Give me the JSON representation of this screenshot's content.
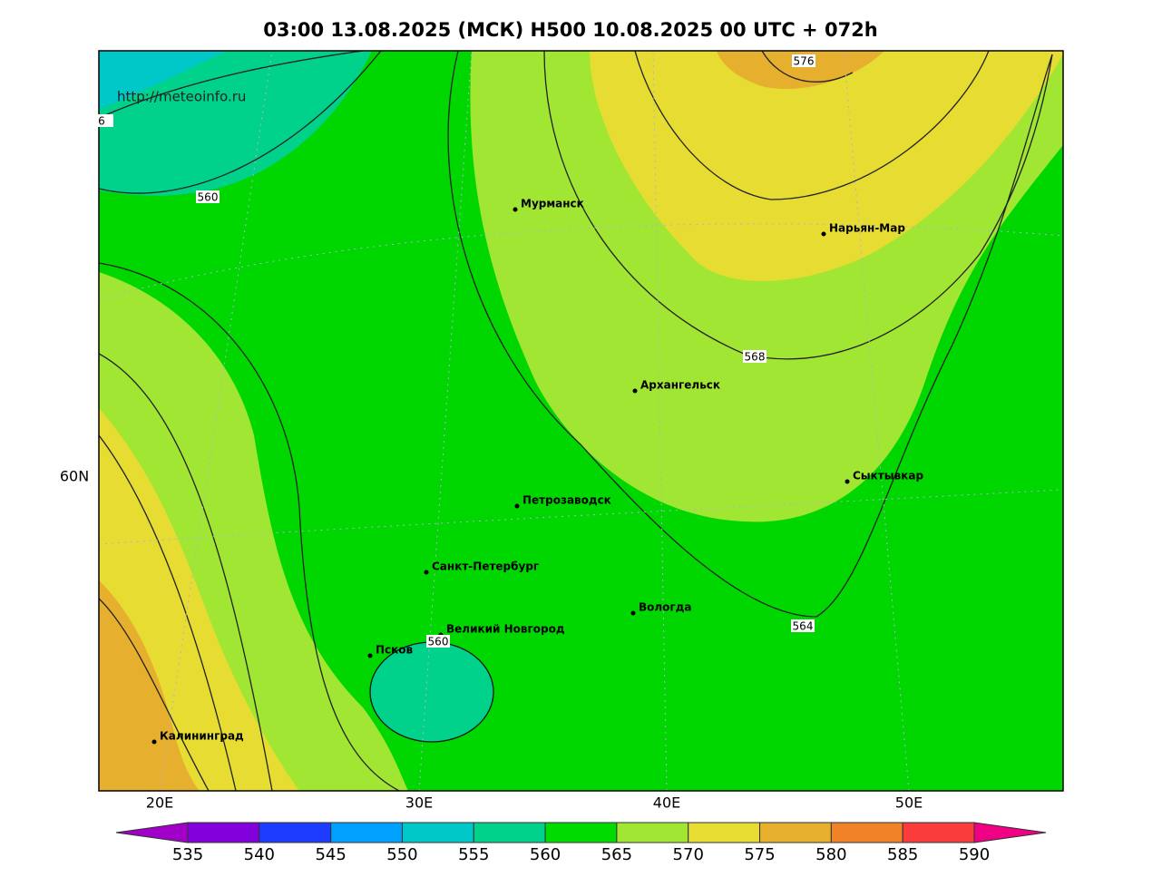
{
  "title": "03:00 13.08.2025 (МСК) H500  10.08.2025 00 UTC + 072h",
  "source": "http://meteoinfo.ru",
  "lat_labels": [
    "60N"
  ],
  "lon_labels": [
    "20E",
    "30E",
    "40E",
    "50E"
  ],
  "cities": [
    "Мурманск",
    "Нарьян-Мар",
    "Архангельск",
    "Сыктывкар",
    "Петрозаводск",
    "Санкт-Петербург",
    "Вологда",
    "Великий Новгород",
    "Псков",
    "Калининград"
  ],
  "contour_labels": [
    576,
    560,
    568,
    564,
    560,
    6
  ],
  "colorbar": {
    "levels": [
      535,
      540,
      545,
      550,
      555,
      560,
      565,
      570,
      575,
      580,
      585,
      590
    ],
    "colors": [
      "#a000c8",
      "#8200dc",
      "#1e3cff",
      "#00a0ff",
      "#00c8c8",
      "#00d28c",
      "#00dc00",
      "#a0e632",
      "#e6dc32",
      "#e6af2d",
      "#f08228",
      "#fa3c3c",
      "#f00082"
    ]
  }
}
